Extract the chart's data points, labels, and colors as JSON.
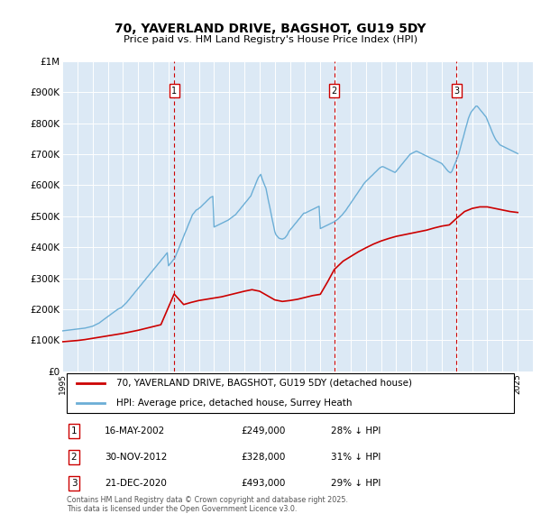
{
  "title": "70, YAVERLAND DRIVE, BAGSHOT, GU19 5DY",
  "subtitle": "Price paid vs. HM Land Registry's House Price Index (HPI)",
  "background_color": "#dce9f5",
  "ylim": [
    0,
    1000000
  ],
  "yticks": [
    0,
    100000,
    200000,
    300000,
    400000,
    500000,
    600000,
    700000,
    800000,
    900000,
    1000000
  ],
  "ytick_labels": [
    "£0",
    "£100K",
    "£200K",
    "£300K",
    "£400K",
    "£500K",
    "£600K",
    "£700K",
    "£800K",
    "£900K",
    "£1M"
  ],
  "xlim_start": 1995,
  "xlim_end": 2026,
  "xtick_years": [
    1995,
    1996,
    1997,
    1998,
    1999,
    2000,
    2001,
    2002,
    2003,
    2004,
    2005,
    2006,
    2007,
    2008,
    2009,
    2010,
    2011,
    2012,
    2013,
    2014,
    2015,
    2016,
    2017,
    2018,
    2019,
    2020,
    2021,
    2022,
    2023,
    2024,
    2025
  ],
  "red_line_color": "#cc0000",
  "blue_line_color": "#6baed6",
  "sale_markers": [
    {
      "year": 2002.37,
      "value": 249000,
      "label": "1"
    },
    {
      "year": 2012.92,
      "value": 328000,
      "label": "2"
    },
    {
      "year": 2020.97,
      "value": 493000,
      "label": "3"
    }
  ],
  "legend_label_red": "70, YAVERLAND DRIVE, BAGSHOT, GU19 5DY (detached house)",
  "legend_label_blue": "HPI: Average price, detached house, Surrey Heath",
  "footnote": "Contains HM Land Registry data © Crown copyright and database right 2025.\nThis data is licensed under the Open Government Licence v3.0.",
  "table_rows": [
    {
      "num": "1",
      "date": "16-MAY-2002",
      "price": "£249,000",
      "hpi": "28% ↓ HPI"
    },
    {
      "num": "2",
      "date": "30-NOV-2012",
      "price": "£328,000",
      "hpi": "31% ↓ HPI"
    },
    {
      "num": "3",
      "date": "21-DEC-2020",
      "price": "£493,000",
      "hpi": "29% ↓ HPI"
    }
  ],
  "hpi_years": [
    1995.0,
    1995.08,
    1995.17,
    1995.25,
    1995.33,
    1995.42,
    1995.5,
    1995.58,
    1995.67,
    1995.75,
    1995.83,
    1995.92,
    1996.0,
    1996.08,
    1996.17,
    1996.25,
    1996.33,
    1996.42,
    1996.5,
    1996.58,
    1996.67,
    1996.75,
    1996.83,
    1996.92,
    1997.0,
    1997.08,
    1997.17,
    1997.25,
    1997.33,
    1997.42,
    1997.5,
    1997.58,
    1997.67,
    1997.75,
    1997.83,
    1997.92,
    1998.0,
    1998.08,
    1998.17,
    1998.25,
    1998.33,
    1998.42,
    1998.5,
    1998.58,
    1998.67,
    1998.75,
    1998.83,
    1998.92,
    1999.0,
    1999.08,
    1999.17,
    1999.25,
    1999.33,
    1999.42,
    1999.5,
    1999.58,
    1999.67,
    1999.75,
    1999.83,
    1999.92,
    2000.0,
    2000.08,
    2000.17,
    2000.25,
    2000.33,
    2000.42,
    2000.5,
    2000.58,
    2000.67,
    2000.75,
    2000.83,
    2000.92,
    2001.0,
    2001.08,
    2001.17,
    2001.25,
    2001.33,
    2001.42,
    2001.5,
    2001.58,
    2001.67,
    2001.75,
    2001.83,
    2001.92,
    2002.0,
    2002.08,
    2002.17,
    2002.25,
    2002.33,
    2002.42,
    2002.5,
    2002.58,
    2002.67,
    2002.75,
    2002.83,
    2002.92,
    2003.0,
    2003.08,
    2003.17,
    2003.25,
    2003.33,
    2003.42,
    2003.5,
    2003.58,
    2003.67,
    2003.75,
    2003.83,
    2003.92,
    2004.0,
    2004.08,
    2004.17,
    2004.25,
    2004.33,
    2004.42,
    2004.5,
    2004.58,
    2004.67,
    2004.75,
    2004.83,
    2004.92,
    2005.0,
    2005.08,
    2005.17,
    2005.25,
    2005.33,
    2005.42,
    2005.5,
    2005.58,
    2005.67,
    2005.75,
    2005.83,
    2005.92,
    2006.0,
    2006.08,
    2006.17,
    2006.25,
    2006.33,
    2006.42,
    2006.5,
    2006.58,
    2006.67,
    2006.75,
    2006.83,
    2006.92,
    2007.0,
    2007.08,
    2007.17,
    2007.25,
    2007.33,
    2007.42,
    2007.5,
    2007.58,
    2007.67,
    2007.75,
    2007.83,
    2007.92,
    2008.0,
    2008.08,
    2008.17,
    2008.25,
    2008.33,
    2008.42,
    2008.5,
    2008.58,
    2008.67,
    2008.75,
    2008.83,
    2008.92,
    2009.0,
    2009.08,
    2009.17,
    2009.25,
    2009.33,
    2009.42,
    2009.5,
    2009.58,
    2009.67,
    2009.75,
    2009.83,
    2009.92,
    2010.0,
    2010.08,
    2010.17,
    2010.25,
    2010.33,
    2010.42,
    2010.5,
    2010.58,
    2010.67,
    2010.75,
    2010.83,
    2010.92,
    2011.0,
    2011.08,
    2011.17,
    2011.25,
    2011.33,
    2011.42,
    2011.5,
    2011.58,
    2011.67,
    2011.75,
    2011.83,
    2011.92,
    2012.0,
    2012.08,
    2012.17,
    2012.25,
    2012.33,
    2012.42,
    2012.5,
    2012.58,
    2012.67,
    2012.75,
    2012.83,
    2012.92,
    2013.0,
    2013.08,
    2013.17,
    2013.25,
    2013.33,
    2013.42,
    2013.5,
    2013.58,
    2013.67,
    2013.75,
    2013.83,
    2013.92,
    2014.0,
    2014.08,
    2014.17,
    2014.25,
    2014.33,
    2014.42,
    2014.5,
    2014.58,
    2014.67,
    2014.75,
    2014.83,
    2014.92,
    2015.0,
    2015.08,
    2015.17,
    2015.25,
    2015.33,
    2015.42,
    2015.5,
    2015.58,
    2015.67,
    2015.75,
    2015.83,
    2015.92,
    2016.0,
    2016.08,
    2016.17,
    2016.25,
    2016.33,
    2016.42,
    2016.5,
    2016.58,
    2016.67,
    2016.75,
    2016.83,
    2016.92,
    2017.0,
    2017.08,
    2017.17,
    2017.25,
    2017.33,
    2017.42,
    2017.5,
    2017.58,
    2017.67,
    2017.75,
    2017.83,
    2017.92,
    2018.0,
    2018.08,
    2018.17,
    2018.25,
    2018.33,
    2018.42,
    2018.5,
    2018.58,
    2018.67,
    2018.75,
    2018.83,
    2018.92,
    2019.0,
    2019.08,
    2019.17,
    2019.25,
    2019.33,
    2019.42,
    2019.5,
    2019.58,
    2019.67,
    2019.75,
    2019.83,
    2019.92,
    2020.0,
    2020.08,
    2020.17,
    2020.25,
    2020.33,
    2020.42,
    2020.5,
    2020.58,
    2020.67,
    2020.75,
    2020.83,
    2020.92,
    2021.0,
    2021.08,
    2021.17,
    2021.25,
    2021.33,
    2021.42,
    2021.5,
    2021.58,
    2021.67,
    2021.75,
    2021.83,
    2021.92,
    2022.0,
    2022.08,
    2022.17,
    2022.25,
    2022.33,
    2022.42,
    2022.5,
    2022.58,
    2022.67,
    2022.75,
    2022.83,
    2022.92,
    2023.0,
    2023.08,
    2023.17,
    2023.25,
    2023.33,
    2023.42,
    2023.5,
    2023.58,
    2023.67,
    2023.75,
    2023.83,
    2023.92,
    2024.0,
    2024.08,
    2024.17,
    2024.25,
    2024.33,
    2024.42,
    2024.5,
    2024.58,
    2024.67,
    2024.75,
    2024.83,
    2024.92,
    2025.0
  ],
  "hpi_values": [
    130000,
    130500,
    131000,
    131500,
    132000,
    132500,
    133000,
    133500,
    134000,
    134500,
    135000,
    135500,
    136000,
    136500,
    137000,
    137500,
    138000,
    138500,
    139000,
    140000,
    141000,
    142000,
    143000,
    144000,
    145000,
    147000,
    149000,
    151000,
    153000,
    155000,
    158000,
    161000,
    164000,
    167000,
    170000,
    173000,
    176000,
    179000,
    182000,
    185000,
    188000,
    191000,
    194000,
    197000,
    200000,
    202000,
    204000,
    206000,
    210000,
    214000,
    218000,
    222000,
    227000,
    232000,
    237000,
    242000,
    247000,
    252000,
    257000,
    262000,
    267000,
    272000,
    277000,
    282000,
    287000,
    292000,
    297000,
    302000,
    307000,
    312000,
    317000,
    322000,
    327000,
    332000,
    337000,
    342000,
    347000,
    352000,
    357000,
    362000,
    367000,
    372000,
    377000,
    382000,
    340000,
    345000,
    350000,
    355000,
    360000,
    365000,
    375000,
    385000,
    395000,
    405000,
    415000,
    425000,
    435000,
    445000,
    455000,
    465000,
    475000,
    485000,
    495000,
    505000,
    510000,
    515000,
    520000,
    522000,
    525000,
    528000,
    532000,
    536000,
    540000,
    544000,
    548000,
    552000,
    556000,
    560000,
    562000,
    564000,
    465000,
    467000,
    469000,
    471000,
    473000,
    475000,
    477000,
    479000,
    481000,
    483000,
    485000,
    487000,
    490000,
    493000,
    496000,
    499000,
    502000,
    505000,
    510000,
    515000,
    520000,
    525000,
    530000,
    535000,
    540000,
    545000,
    550000,
    555000,
    560000,
    565000,
    575000,
    585000,
    595000,
    605000,
    615000,
    625000,
    630000,
    635000,
    620000,
    610000,
    600000,
    590000,
    570000,
    550000,
    530000,
    510000,
    490000,
    470000,
    450000,
    440000,
    435000,
    430000,
    428000,
    427000,
    426000,
    428000,
    430000,
    435000,
    440000,
    450000,
    455000,
    460000,
    465000,
    470000,
    475000,
    480000,
    485000,
    490000,
    495000,
    500000,
    505000,
    510000,
    510000,
    512000,
    514000,
    516000,
    518000,
    520000,
    522000,
    524000,
    526000,
    528000,
    530000,
    532000,
    460000,
    462000,
    464000,
    466000,
    468000,
    470000,
    472000,
    474000,
    476000,
    478000,
    480000,
    482000,
    485000,
    488000,
    491000,
    495000,
    499000,
    503000,
    508000,
    513000,
    518000,
    524000,
    530000,
    536000,
    542000,
    548000,
    554000,
    560000,
    566000,
    572000,
    578000,
    584000,
    590000,
    596000,
    602000,
    608000,
    612000,
    616000,
    620000,
    624000,
    628000,
    632000,
    636000,
    640000,
    644000,
    648000,
    652000,
    656000,
    658000,
    660000,
    659000,
    657000,
    655000,
    653000,
    651000,
    649000,
    647000,
    645000,
    643000,
    641000,
    645000,
    650000,
    655000,
    660000,
    665000,
    670000,
    675000,
    680000,
    685000,
    690000,
    695000,
    700000,
    702000,
    704000,
    706000,
    708000,
    710000,
    708000,
    706000,
    704000,
    702000,
    700000,
    698000,
    696000,
    694000,
    692000,
    690000,
    688000,
    686000,
    684000,
    682000,
    680000,
    678000,
    676000,
    674000,
    672000,
    670000,
    665000,
    660000,
    655000,
    650000,
    645000,
    642000,
    640000,
    645000,
    655000,
    665000,
    675000,
    685000,
    695000,
    710000,
    725000,
    740000,
    755000,
    770000,
    785000,
    800000,
    815000,
    825000,
    835000,
    840000,
    845000,
    850000,
    855000,
    855000,
    850000,
    845000,
    840000,
    835000,
    830000,
    825000,
    820000,
    810000,
    800000,
    790000,
    780000,
    770000,
    760000,
    752000,
    745000,
    740000,
    735000,
    730000,
    728000,
    726000,
    724000,
    722000,
    720000,
    718000,
    716000,
    714000,
    712000,
    710000,
    708000,
    706000,
    704000,
    702000
  ],
  "red_years": [
    1995.0,
    1995.5,
    1996.0,
    1996.5,
    1997.0,
    1997.5,
    1998.0,
    1998.5,
    1999.0,
    1999.5,
    2000.0,
    2000.5,
    2001.0,
    2001.5,
    2002.37,
    2003.0,
    2003.5,
    2004.0,
    2004.5,
    2005.0,
    2005.5,
    2006.0,
    2006.5,
    2007.0,
    2007.5,
    2008.0,
    2008.5,
    2009.0,
    2009.5,
    2010.0,
    2010.5,
    2011.0,
    2011.5,
    2012.0,
    2012.5,
    2012.92,
    2013.5,
    2014.0,
    2014.5,
    2015.0,
    2015.5,
    2016.0,
    2016.5,
    2017.0,
    2017.5,
    2018.0,
    2018.5,
    2019.0,
    2019.5,
    2020.0,
    2020.5,
    2020.97,
    2021.5,
    2022.0,
    2022.5,
    2023.0,
    2023.5,
    2024.0,
    2024.5,
    2025.0
  ],
  "red_values": [
    95000,
    97000,
    99000,
    102000,
    106000,
    110000,
    114000,
    118000,
    122000,
    127000,
    132000,
    138000,
    144000,
    150000,
    249000,
    215000,
    222000,
    228000,
    232000,
    236000,
    240000,
    246000,
    252000,
    258000,
    263000,
    258000,
    244000,
    230000,
    225000,
    228000,
    232000,
    238000,
    244000,
    248000,
    290000,
    328000,
    355000,
    370000,
    385000,
    398000,
    410000,
    420000,
    428000,
    435000,
    440000,
    445000,
    450000,
    455000,
    462000,
    468000,
    472000,
    493000,
    515000,
    525000,
    530000,
    530000,
    525000,
    520000,
    515000,
    512000
  ]
}
